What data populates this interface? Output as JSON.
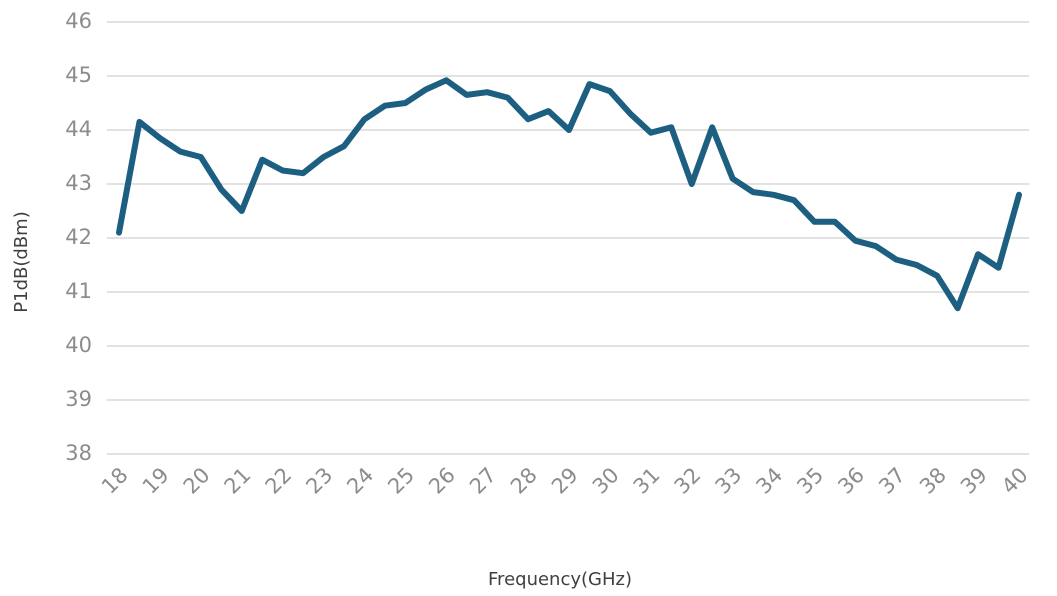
{
  "chart_data": {
    "type": "line",
    "x_label": "Frequency(GHz)",
    "y_label": "P1dB(dBm)",
    "x": [
      18,
      18.5,
      19,
      19.5,
      20,
      20.5,
      21,
      21.5,
      22,
      22.5,
      23,
      23.5,
      24,
      24.5,
      25,
      25.5,
      26,
      26.5,
      27,
      27.5,
      28,
      28.5,
      29,
      29.5,
      30,
      30.5,
      31,
      31.5,
      32,
      32.5,
      33,
      33.5,
      34,
      34.5,
      35,
      35.5,
      36,
      36.5,
      37,
      37.5,
      38,
      38.5,
      39,
      39.5,
      40
    ],
    "series": [
      {
        "name": "P1dB",
        "color": "#1c5f80",
        "values": [
          42.1,
          44.15,
          43.85,
          43.6,
          43.5,
          42.9,
          42.5,
          43.45,
          43.25,
          43.2,
          43.5,
          43.7,
          44.2,
          44.45,
          44.5,
          44.75,
          44.92,
          44.65,
          44.7,
          44.6,
          44.2,
          44.35,
          44.0,
          44.85,
          44.72,
          44.3,
          43.95,
          44.05,
          43.0,
          44.05,
          43.1,
          42.85,
          42.8,
          42.7,
          42.3,
          42.3,
          41.95,
          41.85,
          41.6,
          41.5,
          41.3,
          40.7,
          41.7,
          41.45,
          42.8
        ]
      }
    ],
    "xlim": [
      18,
      40
    ],
    "xticks": [
      18,
      19,
      20,
      21,
      22,
      23,
      24,
      25,
      26,
      27,
      28,
      29,
      30,
      31,
      32,
      33,
      34,
      35,
      36,
      37,
      38,
      39,
      40
    ],
    "ylim": [
      38,
      46
    ],
    "yticks": [
      38,
      39,
      40,
      41,
      42,
      43,
      44,
      45,
      46
    ],
    "grid": true
  }
}
